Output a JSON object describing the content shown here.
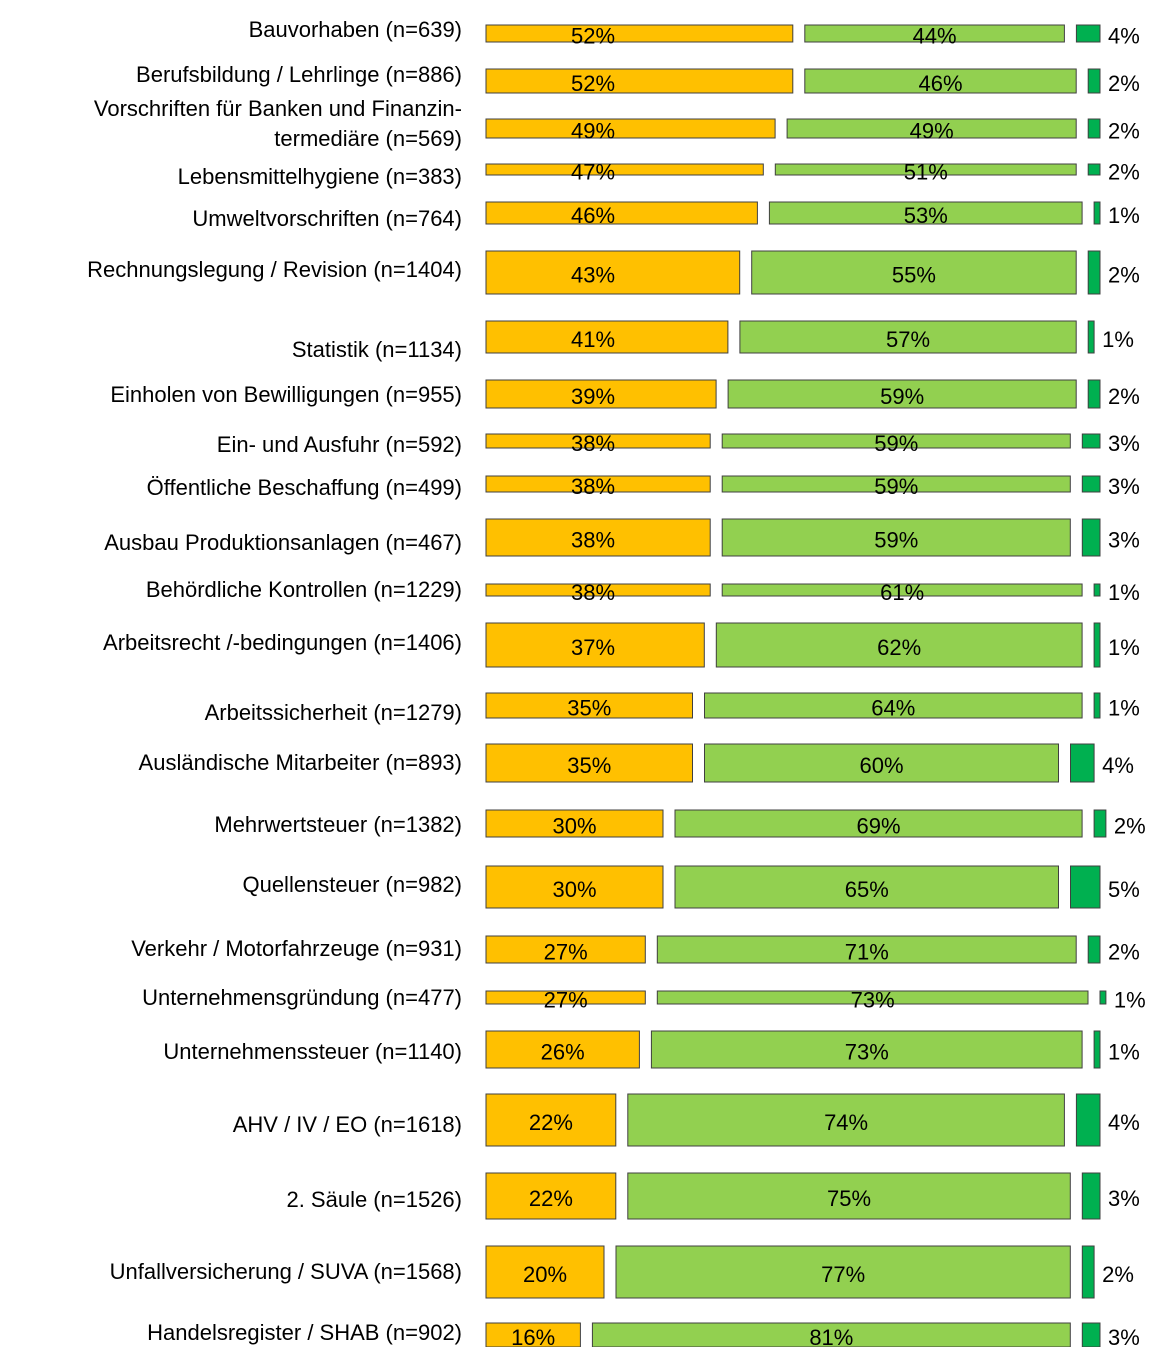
{
  "chart_data": {
    "type": "stacked-bar",
    "categories": [
      "Bauvorhaben (n=639)",
      "Berufsbildung / Lehrlinge (n=886)",
      "Vorschriften für Banken und Finanzin-\ntermediäre (n=569)",
      "Lebensmittelhygiene (n=383)",
      "Umweltvorschriften (n=764)",
      "Rechnungslegung / Revision (n=1404)",
      "Statistik (n=1134)",
      "Einholen von Bewilligungen (n=955)",
      "Ein- und Ausfuhr (n=592)",
      "Öffentliche Beschaffung (n=499)",
      "Ausbau Produktionsanlagen (n=467)",
      "Behördliche Kontrollen (n=1229)",
      "Arbeitsrecht /-bedingungen (n=1406)",
      "Arbeitssicherheit (n=1279)",
      "Ausländische Mitarbeiter (n=893)",
      "Mehrwertsteuer (n=1382)",
      "Quellensteuer (n=982)",
      "Verkehr / Motorfahrzeuge (n=931)",
      "Unternehmensgründung (n=477)",
      "Unternehmenssteuer (n=1140)",
      "AHV / IV / EO (n=1618)",
      "2. Säule (n=1526)",
      "Unfallversicherung / SUVA (n=1568)",
      "Handelsregister / SHAB (n=902)"
    ],
    "series": [
      {
        "color": "#FFC000",
        "values": [
          52,
          52,
          49,
          47,
          46,
          43,
          41,
          39,
          38,
          38,
          38,
          38,
          37,
          35,
          35,
          30,
          30,
          27,
          27,
          26,
          22,
          22,
          20,
          16
        ],
        "value_labels": [
          "52%",
          "52%",
          "49%",
          "47%",
          "46%",
          "43%",
          "41%",
          "39%",
          "38%",
          "38%",
          "38%",
          "38%",
          "37%",
          "35%",
          "35%",
          "30%",
          "30%",
          "27%",
          "27%",
          "26%",
          "22%",
          "22%",
          "20%",
          "16%"
        ]
      },
      {
        "color": "#92D050",
        "values": [
          44,
          46,
          49,
          51,
          53,
          55,
          57,
          59,
          59,
          59,
          59,
          61,
          62,
          64,
          60,
          69,
          65,
          71,
          73,
          73,
          74,
          75,
          77,
          81
        ],
        "value_labels": [
          "44%",
          "46%",
          "49%",
          "51%",
          "53%",
          "55%",
          "57%",
          "59%",
          "59%",
          "59%",
          "59%",
          "61%",
          "62%",
          "64%",
          "60%",
          "69%",
          "65%",
          "71%",
          "73%",
          "73%",
          "74%",
          "75%",
          "77%",
          "81%"
        ]
      },
      {
        "color": "#00B050",
        "values": [
          4,
          2,
          2,
          2,
          1,
          2,
          1,
          2,
          3,
          3,
          3,
          1,
          1,
          1,
          4,
          2,
          5,
          2,
          1,
          1,
          4,
          3,
          2,
          3
        ],
        "value_labels": [
          "4%",
          "2%",
          "2%",
          "2%",
          "1%",
          "2%",
          "1%",
          "2%",
          "3%",
          "3%",
          "3%",
          "1%",
          "1%",
          "1%",
          "4%",
          "2%",
          "5%",
          "2%",
          "1%",
          "1%",
          "4%",
          "3%",
          "2%",
          "3%"
        ]
      }
    ]
  }
}
